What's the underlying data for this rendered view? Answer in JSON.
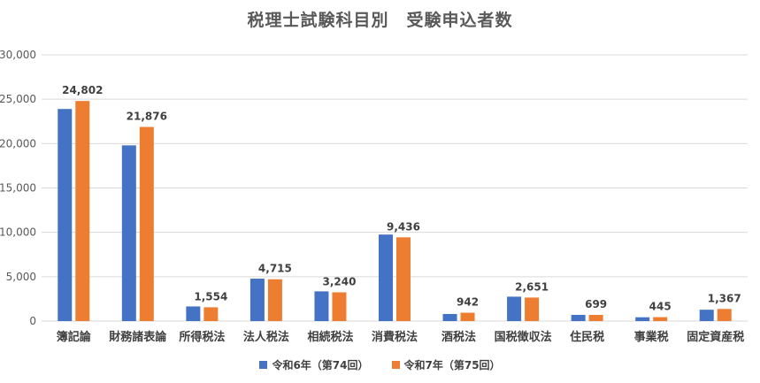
{
  "chart_data": {
    "type": "bar",
    "title": "税理士試験科目別　受験申込者数",
    "categories": [
      "簿記論",
      "財務諸表論",
      "所得税法",
      "法人税法",
      "相続税法",
      "消費税法",
      "酒税法",
      "国税徴収法",
      "住民税",
      "事業税",
      "固定資産税"
    ],
    "series": [
      {
        "name": "令和6年（第74回）",
        "color": "#4472C4",
        "values": [
          23900,
          19800,
          1650,
          4780,
          3350,
          9750,
          800,
          2750,
          700,
          430,
          1280
        ]
      },
      {
        "name": "令和7年（第75回）",
        "color": "#ED7D31",
        "values": [
          24802,
          21876,
          1554,
          4715,
          3240,
          9436,
          942,
          2651,
          699,
          445,
          1367
        ]
      }
    ],
    "data_labels": [
      "24,802",
      "21,876",
      "1,554",
      "4,715",
      "3,240",
      "9,436",
      "942",
      "2,651",
      "699",
      "445",
      "1,367"
    ],
    "ylim": [
      0,
      30000
    ],
    "yticks": [
      "0",
      "5,000",
      "10,000",
      "15,000",
      "20,000",
      "25,000",
      "30,000"
    ],
    "ytick_values": [
      0,
      5000,
      10000,
      15000,
      20000,
      25000,
      30000
    ],
    "grid": true,
    "legend_position": "bottom"
  }
}
